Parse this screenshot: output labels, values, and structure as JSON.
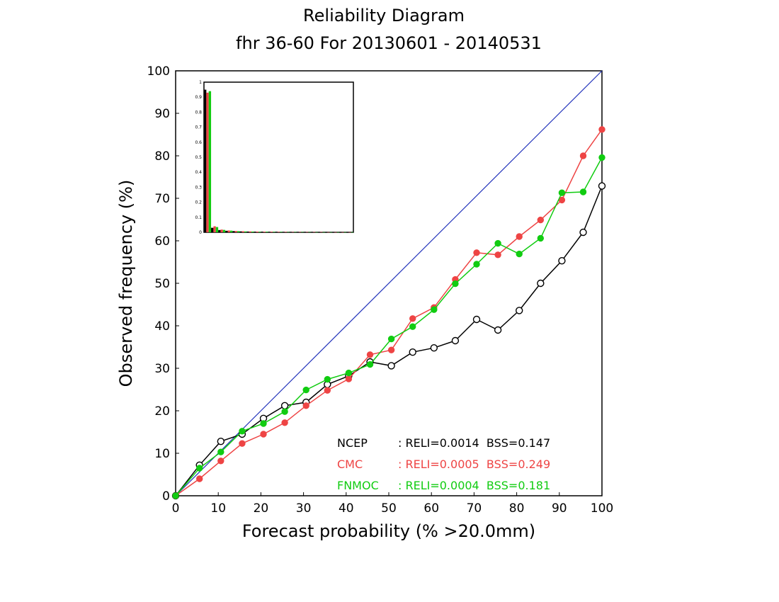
{
  "chart_data": {
    "type": "line",
    "title": "Reliability Diagram",
    "subtitle": "fhr 36-60 For 20130601 - 20140531",
    "xlabel": "Forecast probability (% >20.0mm)",
    "ylabel": "Observed frequency (%)",
    "xlim": [
      0,
      100
    ],
    "ylim": [
      0,
      100
    ],
    "xticks": [
      "0",
      "10",
      "20",
      "30",
      "40",
      "50",
      "60",
      "70",
      "80",
      "90",
      "100"
    ],
    "yticks": [
      "0",
      "10",
      "20",
      "30",
      "40",
      "50",
      "60",
      "70",
      "80",
      "90",
      "100"
    ],
    "grid": false,
    "diagonal_color": "#2233bb",
    "series": [
      {
        "name": "NCEP",
        "color": "#000000",
        "marker": "open-circle",
        "x": [
          0,
          5.6,
          10.6,
          15.6,
          20.6,
          25.6,
          30.6,
          35.6,
          40.6,
          45.6,
          50.6,
          55.6,
          60.6,
          65.6,
          70.6,
          75.6,
          80.6,
          85.6,
          90.6,
          95.6,
          100
        ],
        "y": [
          0,
          7.2,
          12.8,
          14.5,
          18.2,
          21.2,
          22.0,
          26.2,
          28.2,
          31.5,
          30.6,
          33.8,
          34.8,
          36.5,
          41.5,
          39.0,
          43.6,
          50.0,
          55.3,
          62.0,
          72.9
        ]
      },
      {
        "name": "CMC",
        "color": "#ee4444",
        "marker": "filled-circle",
        "x": [
          0,
          5.6,
          10.6,
          15.6,
          20.6,
          25.6,
          30.6,
          35.6,
          40.6,
          45.6,
          50.6,
          55.6,
          60.6,
          65.6,
          70.6,
          75.6,
          80.6,
          85.6,
          90.6,
          95.6,
          100
        ],
        "y": [
          0,
          4.0,
          8.2,
          12.3,
          14.5,
          17.2,
          21.2,
          24.8,
          27.5,
          33.2,
          34.3,
          41.7,
          44.3,
          50.9,
          57.2,
          56.7,
          61.0,
          64.9,
          69.6,
          80.0,
          86.2
        ]
      },
      {
        "name": "FNMOC",
        "color": "#11cc11",
        "marker": "filled-circle",
        "x": [
          0,
          5.6,
          10.6,
          15.6,
          20.6,
          25.6,
          30.6,
          35.6,
          40.6,
          45.6,
          50.6,
          55.6,
          60.6,
          65.6,
          70.6,
          75.6,
          80.6,
          85.6,
          90.6,
          95.6,
          100
        ],
        "y": [
          0,
          6.5,
          10.3,
          15.2,
          17.0,
          19.8,
          24.9,
          27.4,
          28.9,
          30.9,
          36.9,
          39.8,
          43.8,
          49.9,
          54.5,
          59.4,
          56.9,
          60.6,
          71.3,
          71.5,
          79.6
        ]
      }
    ],
    "legend": {
      "placement": "bottom-right",
      "entries": [
        {
          "name": "NCEP",
          "stats": ": RELI=0.0014  BSS=0.147",
          "color": "#000000"
        },
        {
          "name": "CMC",
          "stats": ": RELI=0.0005  BSS=0.249",
          "color": "#ee4444"
        },
        {
          "name": "FNMOC",
          "stats": ": RELI=0.0004  BSS=0.181",
          "color": "#11cc11"
        }
      ]
    },
    "inset": {
      "type": "bar",
      "placement": "top-left",
      "ylim": [
        0,
        1
      ],
      "yticks": [
        "0",
        "0.1",
        "0.2",
        "0.3",
        "0.4",
        "0.5",
        "0.6",
        "0.7",
        "0.8",
        "0.9",
        "1"
      ],
      "series": [
        {
          "name": "NCEP",
          "color": "#000000",
          "values": [
            0.95,
            0.03,
            0.015,
            0.01,
            0.008,
            0.006,
            0.005,
            0.004,
            0.004,
            0.003,
            0.003,
            0.002,
            0.002,
            0.002,
            0.002,
            0.002,
            0.001,
            0.001,
            0.001,
            0.001,
            0.001
          ]
        },
        {
          "name": "CMC",
          "color": "#ee4444",
          "values": [
            0.93,
            0.04,
            0.018,
            0.012,
            0.009,
            0.007,
            0.006,
            0.005,
            0.004,
            0.004,
            0.003,
            0.003,
            0.002,
            0.002,
            0.002,
            0.002,
            0.002,
            0.001,
            0.001,
            0.001,
            0.001
          ]
        },
        {
          "name": "FNMOC",
          "color": "#11cc11",
          "values": [
            0.94,
            0.035,
            0.016,
            0.011,
            0.008,
            0.006,
            0.005,
            0.004,
            0.004,
            0.003,
            0.003,
            0.002,
            0.002,
            0.002,
            0.002,
            0.001,
            0.001,
            0.001,
            0.001,
            0.001,
            0.001
          ]
        }
      ]
    }
  }
}
